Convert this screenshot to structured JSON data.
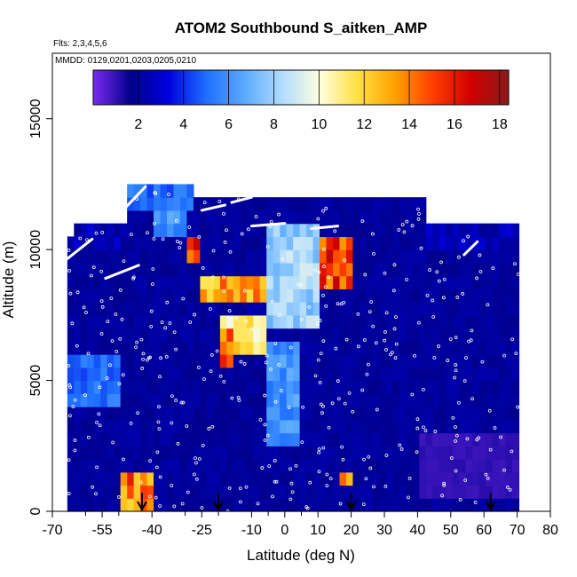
{
  "chart_data": {
    "type": "heatmap",
    "title": "ATOM2 Southbound S_aitken_AMP",
    "subtitle_flights": "Flts: 2,3,4,5,6",
    "subtitle_dates": "MMDD: 0129,0201,0203,0205,0210",
    "xlabel": "Latitude (deg N)",
    "ylabel": "Altitude (m)",
    "xlim": [
      -70,
      80
    ],
    "ylim": [
      0,
      17500
    ],
    "x_major_ticks": [
      -70,
      -55,
      -40,
      -25,
      -10,
      0,
      10,
      20,
      30,
      40,
      50,
      60,
      70,
      80
    ],
    "x_major_tick_labels": [
      "-70",
      "-55",
      "-40",
      "-25",
      "-10",
      "0",
      "10",
      "20",
      "30",
      "40",
      "50",
      "60",
      "70",
      "80"
    ],
    "x_minor_ticks": [
      -60,
      -50,
      -30,
      -20,
      -5,
      5
    ],
    "y_ticks": [
      0,
      5000,
      10000,
      15000
    ],
    "y_tick_labels": [
      "0",
      "5000",
      "10000",
      "15000"
    ],
    "colorbar": {
      "range": [
        0,
        18.4
      ],
      "tick_values": [
        2,
        4,
        6,
        8,
        10,
        12,
        14,
        16,
        18
      ],
      "tick_labels": [
        "2",
        "4",
        "6",
        "8",
        "10",
        "12",
        "14",
        "16",
        "18"
      ],
      "colors": [
        "#7a2af0",
        "#00008b",
        "#0000e0",
        "#1e6fff",
        "#5aaaff",
        "#b0dcff",
        "#ffffe0",
        "#ffe040",
        "#ffa000",
        "#ff3c00",
        "#d00000",
        "#8b1a1a"
      ]
    },
    "arrow_latitudes": [
      -43,
      -20,
      20,
      62
    ],
    "grid": false,
    "regions": [
      {
        "lat": [
          -70,
          70
        ],
        "alt": [
          0,
          10000
        ],
        "value": 2
      },
      {
        "lat": [
          -48,
          42
        ],
        "alt": [
          10000,
          12000
        ],
        "value": 2
      },
      {
        "lat": [
          -48,
          -28
        ],
        "alt": [
          11500,
          12500
        ],
        "value": 5
      },
      {
        "lat": [
          -40,
          -30
        ],
        "alt": [
          10500,
          11500
        ],
        "value": 6
      },
      {
        "lat": [
          -30,
          -25
        ],
        "alt": [
          9500,
          10500
        ],
        "value": 15
      },
      {
        "lat": [
          -25,
          -5
        ],
        "alt": [
          8000,
          9000
        ],
        "value": 13
      },
      {
        "lat": [
          -20,
          -5
        ],
        "alt": [
          6000,
          7500
        ],
        "value": 11
      },
      {
        "lat": [
          -20,
          -15
        ],
        "alt": [
          5500,
          7000
        ],
        "value": 15
      },
      {
        "lat": [
          -5,
          10
        ],
        "alt": [
          7000,
          11000
        ],
        "value": 8
      },
      {
        "lat": [
          10,
          20
        ],
        "alt": [
          8500,
          10500
        ],
        "value": 15
      },
      {
        "lat": [
          -5,
          5
        ],
        "alt": [
          2500,
          6500
        ],
        "value": 6
      },
      {
        "lat": [
          -50,
          -40
        ],
        "alt": [
          0,
          1500
        ],
        "value": 14
      },
      {
        "lat": [
          -66,
          -50
        ],
        "alt": [
          4000,
          6000
        ],
        "value": 5
      },
      {
        "lat": [
          17,
          21
        ],
        "alt": [
          800,
          1500
        ],
        "value": 14
      },
      {
        "lat": [
          40,
          70
        ],
        "alt": [
          500,
          3000
        ],
        "value": 1
      }
    ]
  }
}
